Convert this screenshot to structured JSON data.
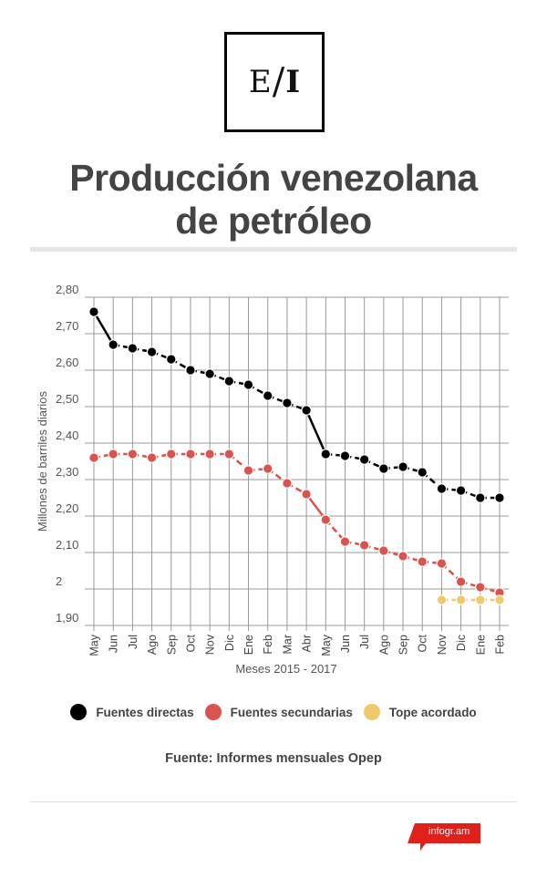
{
  "header": {
    "logo": {
      "left": "E",
      "slash": "/",
      "right": "I"
    },
    "title_line1": "Producción venezolana",
    "title_line2": "de petróleo"
  },
  "chart_data": {
    "type": "line",
    "title": "Producción venezolana de petróleo",
    "xlabel": "Meses 2015 - 2017",
    "ylabel": "Millones de barriles diarios",
    "ylim": [
      1.9,
      2.8
    ],
    "yticks": [
      1.9,
      2.0,
      2.1,
      2.2,
      2.3,
      2.4,
      2.5,
      2.6,
      2.7,
      2.8
    ],
    "ytick_labels": [
      "1,90",
      "2",
      "2,10",
      "2,20",
      "2,30",
      "2,40",
      "2,50",
      "2,60",
      "2,70",
      "2,80"
    ],
    "grid": true,
    "legend_position": "bottom",
    "categories": [
      "May",
      "Jun",
      "Jul",
      "Ago",
      "Sep",
      "Oct",
      "Nov",
      "Dic",
      "Ene",
      "Feb",
      "Mar",
      "Abr",
      "May",
      "Jun",
      "Jul",
      "Ago",
      "Sep",
      "Oct",
      "Nov",
      "Dic",
      "Ene",
      "Feb"
    ],
    "series": [
      {
        "name": "Fuentes directas",
        "color": "#000000",
        "values": [
          2.76,
          2.67,
          2.66,
          2.65,
          2.63,
          2.6,
          2.59,
          2.57,
          2.56,
          2.53,
          2.51,
          2.49,
          2.37,
          2.365,
          2.355,
          2.33,
          2.335,
          2.32,
          2.275,
          2.27,
          2.25,
          2.25
        ]
      },
      {
        "name": "Fuentes secundarias",
        "color": "#d9534f",
        "values": [
          2.36,
          2.37,
          2.37,
          2.36,
          2.37,
          2.37,
          2.37,
          2.37,
          2.325,
          2.33,
          2.29,
          2.26,
          2.19,
          2.13,
          2.12,
          2.105,
          2.09,
          2.075,
          2.07,
          2.02,
          2.005,
          1.99
        ]
      },
      {
        "name": "Tope acordado",
        "color": "#f0c96a",
        "values": [
          null,
          null,
          null,
          null,
          null,
          null,
          null,
          null,
          null,
          null,
          null,
          null,
          null,
          null,
          null,
          null,
          null,
          null,
          1.97,
          1.97,
          1.97,
          1.97
        ]
      }
    ]
  },
  "footer": {
    "source": "Fuente: Informes mensuales Opep",
    "badge": "infogr.am",
    "badge_color": "#e0201b"
  }
}
